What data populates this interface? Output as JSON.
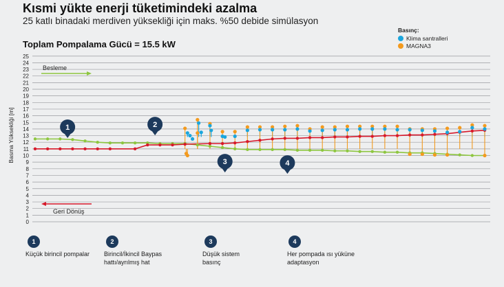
{
  "header": {
    "title": "Kısmi yükte enerji tüketimindeki azalma",
    "subtitle": "25 katlı binadaki merdiven yüksekliği için maks. %50 debide simülasyon",
    "power": "Toplam Pompalama Gücü = 15.5 kW"
  },
  "legend": {
    "title": "Basınç:",
    "items": [
      {
        "label": "Klima santralleri",
        "color": "#1ba6dd"
      },
      {
        "label": "MAGNA3",
        "color": "#f39a1e"
      }
    ]
  },
  "annotations": {
    "supply_label": "Besleme",
    "return_label": "Geri Dönüş",
    "supply_color": "#8dc63f",
    "return_color": "#d7192a"
  },
  "markers": [
    {
      "num": "1",
      "text": "Küçük birincil pompalar"
    },
    {
      "num": "2",
      "text": "Birincil/İkincil Baypas hattı/ayrılmış hat"
    },
    {
      "num": "3",
      "text": "Düşük sistem basınç"
    },
    {
      "num": "4",
      "text": "Her pompada ısı yüküne adaptasyon"
    }
  ],
  "chart_data": {
    "type": "line",
    "ylabel": "Basma Yüksekliği [m]",
    "ylim": [
      0,
      25
    ],
    "yticks": [
      "0",
      "1",
      "2",
      "3",
      "4",
      "5",
      "6",
      "7",
      "8",
      "9",
      "10",
      "11",
      "12",
      "13",
      "14",
      "15",
      "16",
      "17",
      "18",
      "19",
      "20",
      "21",
      "22",
      "23",
      "24",
      "25"
    ],
    "grid": true,
    "series": [
      {
        "name": "Geri Dönüş",
        "color": "#d7192a",
        "x": [
          1,
          2,
          3,
          4,
          5,
          6,
          7,
          9,
          10,
          11,
          12,
          13,
          15,
          16,
          17,
          18,
          19,
          20,
          21,
          22,
          23,
          24,
          25,
          26,
          27,
          28,
          29,
          30,
          31,
          32,
          33,
          34,
          35,
          36,
          37
        ],
        "y": [
          11,
          11,
          11,
          11,
          11,
          11,
          11,
          11,
          11.6,
          11.6,
          11.6,
          11.7,
          11.8,
          11.8,
          11.9,
          12.1,
          12.3,
          12.5,
          12.6,
          12.6,
          12.7,
          12.7,
          12.8,
          12.8,
          12.9,
          12.9,
          13,
          13,
          13.1,
          13.1,
          13.2,
          13.3,
          13.5,
          13.7,
          13.8
        ]
      },
      {
        "name": "Besleme",
        "color": "#8dc63f",
        "x": [
          1,
          2,
          3,
          4,
          5,
          6,
          7,
          8,
          9,
          10,
          11,
          12,
          13,
          14,
          15,
          16,
          17,
          18,
          19,
          20,
          21,
          22,
          23,
          24,
          25,
          26,
          27,
          28,
          29,
          30,
          31,
          32,
          33,
          34,
          35,
          36,
          37
        ],
        "y": [
          12.5,
          12.5,
          12.5,
          12.4,
          12.2,
          12,
          11.9,
          11.9,
          11.9,
          11.9,
          11.8,
          11.8,
          11.8,
          11.6,
          11.4,
          11.2,
          11,
          10.9,
          10.9,
          10.9,
          10.9,
          10.8,
          10.8,
          10.8,
          10.7,
          10.7,
          10.6,
          10.6,
          10.5,
          10.5,
          10.4,
          10.4,
          10.3,
          10.2,
          10.1,
          10,
          10
        ]
      },
      {
        "name": "Klima santralleri",
        "color": "#1ba6dd",
        "points": [
          [
            13.2,
            13.4
          ],
          [
            13.4,
            13
          ],
          [
            13.6,
            12.5
          ],
          [
            14.1,
            14.9
          ],
          [
            14.3,
            13.5
          ],
          [
            15,
            14.5
          ],
          [
            15.1,
            13.8
          ],
          [
            16,
            12.9
          ],
          [
            16.2,
            12.8
          ],
          [
            17,
            12.9
          ],
          [
            18,
            13.8
          ],
          [
            19,
            13.9
          ],
          [
            20,
            13.9
          ],
          [
            21,
            13.9
          ],
          [
            22,
            14
          ],
          [
            23,
            13.7
          ],
          [
            24,
            13.8
          ],
          [
            25,
            13.9
          ],
          [
            26,
            13.9
          ],
          [
            27,
            14
          ],
          [
            28,
            14
          ],
          [
            29,
            14
          ],
          [
            30,
            13.9
          ],
          [
            31,
            13.9
          ],
          [
            32,
            13.8
          ],
          [
            33,
            13.7
          ],
          [
            34,
            13.5
          ],
          [
            35,
            13.6
          ],
          [
            36,
            14.2
          ],
          [
            37,
            14
          ]
        ]
      },
      {
        "name": "MAGNA3",
        "color": "#f39a1e",
        "points": [
          [
            13,
            14.1
          ],
          [
            13.1,
            10.3
          ],
          [
            13.2,
            10
          ],
          [
            14,
            15.4
          ],
          [
            14,
            13.4
          ],
          [
            15,
            14.8
          ],
          [
            16,
            13.6
          ],
          [
            17,
            13.6
          ],
          [
            18,
            14.3
          ],
          [
            19,
            14.3
          ],
          [
            20,
            14.3
          ],
          [
            21,
            14.4
          ],
          [
            22,
            14.5
          ],
          [
            23,
            14
          ],
          [
            24,
            14.3
          ],
          [
            25,
            14.3
          ],
          [
            26,
            14.4
          ],
          [
            27,
            14.4
          ],
          [
            28,
            14.4
          ],
          [
            29,
            14.4
          ],
          [
            30,
            14.4
          ],
          [
            31,
            14
          ],
          [
            31,
            10.2
          ],
          [
            32,
            14
          ],
          [
            32,
            10.2
          ],
          [
            33,
            14
          ],
          [
            33,
            10.1
          ],
          [
            34,
            14.1
          ],
          [
            34,
            10.1
          ],
          [
            35,
            14.2
          ],
          [
            36,
            14.6
          ],
          [
            37,
            14.5
          ],
          [
            37,
            10
          ]
        ]
      }
    ],
    "callouts": [
      {
        "num": "1",
        "x": 3.6,
        "y": 14.3
      },
      {
        "num": "2",
        "x": 10.6,
        "y": 14.7
      },
      {
        "num": "3",
        "x": 16.2,
        "y": 9.1
      },
      {
        "num": "4",
        "x": 21.2,
        "y": 8.9
      }
    ]
  }
}
